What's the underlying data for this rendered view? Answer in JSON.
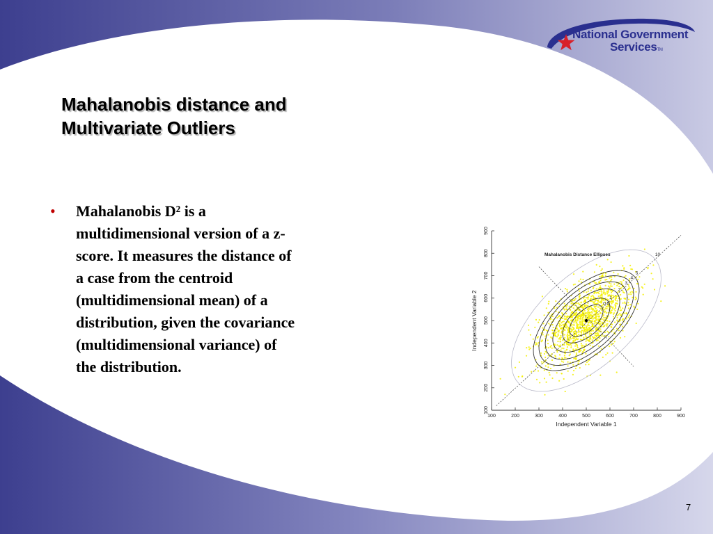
{
  "slide": {
    "title_lines": [
      "Mahalanobis distance and",
      "Multivariate Outliers"
    ],
    "bullet_lines": [
      "Mahalanobis D² is a",
      "multidimensional version of a z-",
      "score.  It measures the distance of",
      "a case from the centroid",
      "(multidimensional mean) of a",
      "distribution, given the covariance",
      "(multidimensional variance) of",
      "the distribution."
    ],
    "page_number": "7"
  },
  "logo": {
    "line1": "National Government",
    "line2": "Services",
    "tm": "TM"
  },
  "colors": {
    "band_dark": "#3d3f8f",
    "band_light": "#c9cae4",
    "logo_blue": "#2a2f8f",
    "star_red": "#d8202a",
    "bullet_red": "#c00000",
    "point_yellow": "#f5f000"
  },
  "chart_data": {
    "type": "scatter",
    "title": "Mahalanobis Distance Ellipses",
    "xlabel": "Independent Variable 1",
    "ylabel": "Independent Variable 2",
    "xlim": [
      100,
      900
    ],
    "ylim": [
      100,
      900
    ],
    "x_ticks": [
      100,
      200,
      300,
      400,
      500,
      600,
      700,
      800,
      900
    ],
    "y_ticks": [
      100,
      200,
      300,
      400,
      500,
      600,
      700,
      800,
      900
    ],
    "centroid": [
      500,
      500
    ],
    "ellipse_labels": [
      "0.5",
      "1",
      "2",
      "3",
      "4",
      "5",
      "10"
    ],
    "ellipse_levels": [
      0.5,
      1,
      2,
      3,
      4,
      5,
      10
    ],
    "axis_angle_deg": 45,
    "covariance": {
      "sd1": 100,
      "sd2": 100,
      "r": 0.6
    },
    "point_color": "#f5f000",
    "grid": false
  }
}
